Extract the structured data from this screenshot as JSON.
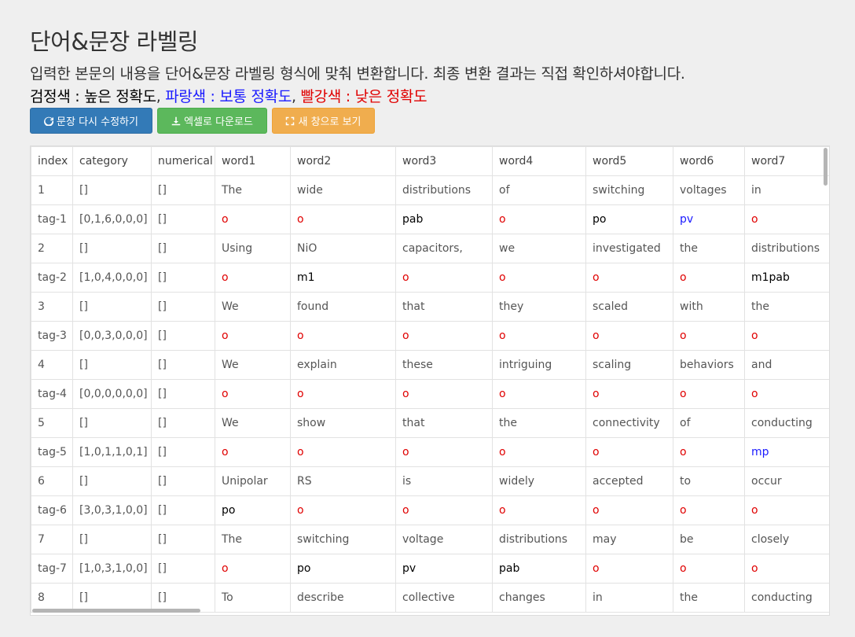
{
  "header": {
    "title": "단어&문장 라벨링",
    "description": "입력한 본문의 내용을 단어&문장 라벨링 형식에 맞춰 변환합니다. 최종 변환 결과는 직접 확인하셔야합니다.",
    "legend": {
      "black_label": "검정색 : 높은 정확도",
      "sep1": ", ",
      "blue_label": "파랑색 : 보통 정확도",
      "sep2": ", ",
      "red_label": "빨강색 : 낮은 정확도"
    }
  },
  "toolbar": {
    "edit_label": "문장 다시 수정하기",
    "excel_label": "엑셀로 다운로드",
    "new_window_label": "새 창으로 보기"
  },
  "colors": {
    "high": "#000000",
    "medium": "#1a1aff",
    "low": "#e00000"
  },
  "table": {
    "columns": [
      "index",
      "category",
      "numerical",
      "word1",
      "word2",
      "word3",
      "word4",
      "word5",
      "word6",
      "word7"
    ],
    "rows": [
      {
        "type": "sentence",
        "cells": [
          "1",
          "[]",
          "[]",
          "The",
          "wide",
          "distributions",
          "of",
          "switching",
          "voltages",
          "in"
        ]
      },
      {
        "type": "tag",
        "cells": [
          "tag-1",
          "[0,1,6,0,0,0]",
          "[]",
          "o",
          "o",
          "pab",
          "o",
          "po",
          "pv",
          "o"
        ],
        "colors": [
          "",
          "",
          "",
          "red",
          "red",
          "black",
          "red",
          "black",
          "blue",
          "red"
        ]
      },
      {
        "type": "sentence",
        "cells": [
          "2",
          "[]",
          "[]",
          "Using",
          "NiO",
          "capacitors,",
          "we",
          "investigated",
          "the",
          "distributions"
        ]
      },
      {
        "type": "tag",
        "cells": [
          "tag-2",
          "[1,0,4,0,0,0]",
          "[]",
          "o",
          "m1",
          "o",
          "o",
          "o",
          "o",
          "m1pab"
        ],
        "colors": [
          "",
          "",
          "",
          "red",
          "black",
          "red",
          "red",
          "red",
          "red",
          "black"
        ]
      },
      {
        "type": "sentence",
        "cells": [
          "3",
          "[]",
          "[]",
          "We",
          "found",
          "that",
          "they",
          "scaled",
          "with",
          "the"
        ]
      },
      {
        "type": "tag",
        "cells": [
          "tag-3",
          "[0,0,3,0,0,0]",
          "[]",
          "o",
          "o",
          "o",
          "o",
          "o",
          "o",
          "o"
        ],
        "colors": [
          "",
          "",
          "",
          "red",
          "red",
          "red",
          "red",
          "red",
          "red",
          "red"
        ]
      },
      {
        "type": "sentence",
        "cells": [
          "4",
          "[]",
          "[]",
          "We",
          "explain",
          "these",
          "intriguing",
          "scaling",
          "behaviors",
          "and"
        ]
      },
      {
        "type": "tag",
        "cells": [
          "tag-4",
          "[0,0,0,0,0,0]",
          "[]",
          "o",
          "o",
          "o",
          "o",
          "o",
          "o",
          "o"
        ],
        "colors": [
          "",
          "",
          "",
          "red",
          "red",
          "red",
          "red",
          "red",
          "red",
          "red"
        ]
      },
      {
        "type": "sentence",
        "cells": [
          "5",
          "[]",
          "[]",
          "We",
          "show",
          "that",
          "the",
          "connectivity",
          "of",
          "conducting"
        ]
      },
      {
        "type": "tag",
        "cells": [
          "tag-5",
          "[1,0,1,1,0,1]",
          "[]",
          "o",
          "o",
          "o",
          "o",
          "o",
          "o",
          "mp"
        ],
        "colors": [
          "",
          "",
          "",
          "red",
          "red",
          "red",
          "red",
          "red",
          "red",
          "blue"
        ]
      },
      {
        "type": "sentence",
        "cells": [
          "6",
          "[]",
          "[]",
          "Unipolar",
          "RS",
          "is",
          "widely",
          "accepted",
          "to",
          "occur"
        ]
      },
      {
        "type": "tag",
        "cells": [
          "tag-6",
          "[3,0,3,1,0,0]",
          "[]",
          "po",
          "o",
          "o",
          "o",
          "o",
          "o",
          "o"
        ],
        "colors": [
          "",
          "",
          "",
          "black",
          "red",
          "red",
          "red",
          "red",
          "red",
          "red"
        ]
      },
      {
        "type": "sentence",
        "cells": [
          "7",
          "[]",
          "[]",
          "The",
          "switching",
          "voltage",
          "distributions",
          "may",
          "be",
          "closely"
        ]
      },
      {
        "type": "tag",
        "cells": [
          "tag-7",
          "[1,0,3,1,0,0]",
          "[]",
          "o",
          "po",
          "pv",
          "pab",
          "o",
          "o",
          "o"
        ],
        "colors": [
          "",
          "",
          "",
          "red",
          "black",
          "black",
          "black",
          "red",
          "red",
          "red"
        ]
      },
      {
        "type": "sentence",
        "cells": [
          "8",
          "[]",
          "[]",
          "To",
          "describe",
          "collective",
          "changes",
          "in",
          "the",
          "conducting"
        ]
      }
    ]
  }
}
